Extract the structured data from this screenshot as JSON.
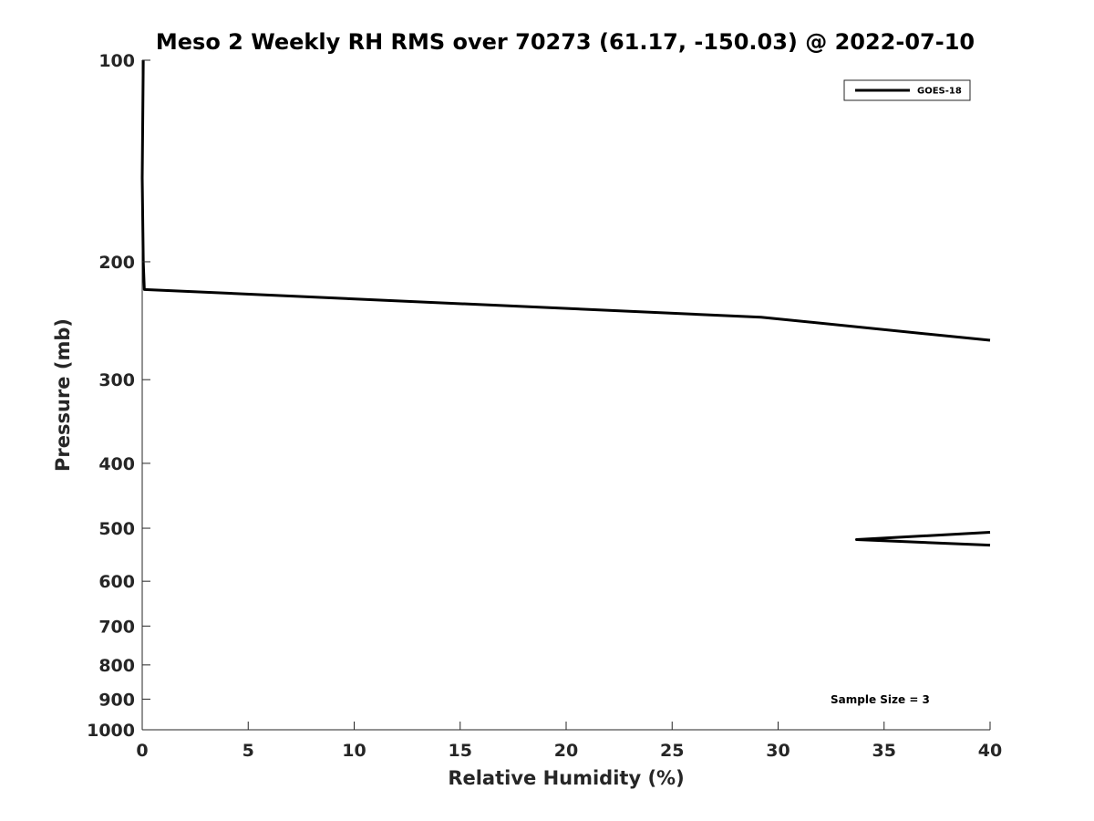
{
  "chart_data": {
    "type": "line",
    "title": "Meso 2 Weekly RH RMS over 70273 (61.17, -150.03) @ 2022-07-10",
    "xlabel": "Relative Humidity (%)",
    "ylabel": "Pressure (mb)",
    "xlim": [
      0,
      40
    ],
    "ylim": [
      100,
      1000
    ],
    "y_scale": "log",
    "y_reversed": true,
    "grid": false,
    "x_ticks": [
      0,
      5,
      10,
      15,
      20,
      25,
      30,
      35,
      40
    ],
    "x_tick_labels": [
      "0",
      "5",
      "10",
      "15",
      "20",
      "25",
      "30",
      "35",
      "40"
    ],
    "y_ticks": [
      100,
      200,
      300,
      400,
      500,
      600,
      700,
      800,
      900,
      1000
    ],
    "y_tick_labels": [
      "100",
      "200",
      "300",
      "400",
      "500",
      "600",
      "700",
      "800",
      "900",
      "1000"
    ],
    "legend_position": "top-right",
    "series": [
      {
        "name": "GOES-18",
        "color": "#000000",
        "segments": [
          [
            {
              "x": 0.05,
              "y": 100
            },
            {
              "x": 0.0,
              "y": 150
            },
            {
              "x": 0.05,
              "y": 200
            },
            {
              "x": 0.1,
              "y": 220
            },
            {
              "x": 29.2,
              "y": 242
            },
            {
              "x": 40,
              "y": 262
            }
          ],
          [
            {
              "x": 40,
              "y": 507
            },
            {
              "x": 33.7,
              "y": 520
            },
            {
              "x": 40,
              "y": 530
            }
          ]
        ]
      }
    ],
    "annotations": [
      {
        "text": "Sample Size = 3",
        "position": "bottom-right"
      }
    ]
  }
}
